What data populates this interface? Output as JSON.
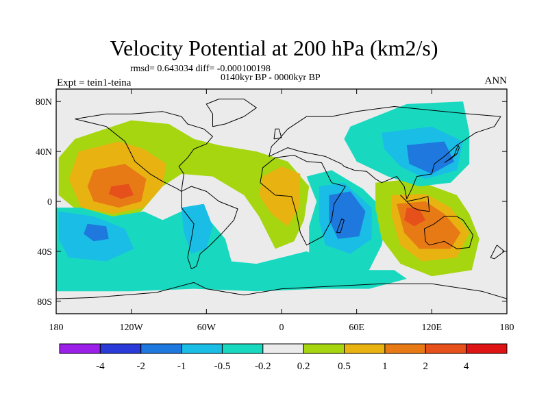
{
  "chart_data": {
    "type": "heatmap",
    "title": "Velocity Potential at 200 hPa (km2/s)",
    "stats_label": "rmsd= 0.643034 diff= -0.000100198",
    "period_label": "0140kyr BP - 0000kyr BP",
    "experiment_label": "Expt = tein1-teina",
    "season_label": "ANN",
    "x_ticks": [
      "180",
      "120W",
      "60W",
      "0",
      "60E",
      "120E",
      "180"
    ],
    "x_tick_lons": [
      -180,
      -120,
      -60,
      0,
      60,
      120,
      180
    ],
    "y_ticks": [
      "80N",
      "40N",
      "0",
      "40S",
      "80S"
    ],
    "y_tick_lats": [
      80,
      40,
      0,
      -40,
      -80
    ],
    "xlim": [
      -180,
      180
    ],
    "ylim": [
      -90,
      90
    ],
    "colorbar": {
      "levels": [
        "-4",
        "-2",
        "-1",
        "-0.5",
        "-0.2",
        "0.2",
        "0.5",
        "1",
        "2",
        "4"
      ],
      "colors": [
        "#9b1fe8",
        "#2a3ad8",
        "#1f78dd",
        "#19bde6",
        "#18d9c0",
        "#ebebeb",
        "#a6d610",
        "#e8b211",
        "#e87a16",
        "#e6501a",
        "#de1414"
      ]
    },
    "anomaly_centers": [
      {
        "name": "eastern-pacific-positive",
        "lon": -127,
        "lat": 8,
        "peak": 2.5
      },
      {
        "name": "atlantic-africa-positive",
        "lon": 2,
        "lat": 2,
        "peak": 0.9
      },
      {
        "name": "maritime-continent-positive",
        "lon": 110,
        "lat": -12,
        "peak": 2.2
      },
      {
        "name": "indian-ocean-negative",
        "lon": 55,
        "lat": -15,
        "peak": -1.7
      },
      {
        "name": "east-asia-negative",
        "lon": 118,
        "lat": 32,
        "peak": -1.5
      },
      {
        "name": "south-pacific-negative",
        "lon": -145,
        "lat": -25,
        "peak": -1.2
      },
      {
        "name": "south-america-negative",
        "lon": -68,
        "lat": -20,
        "peak": -1.0
      }
    ]
  }
}
